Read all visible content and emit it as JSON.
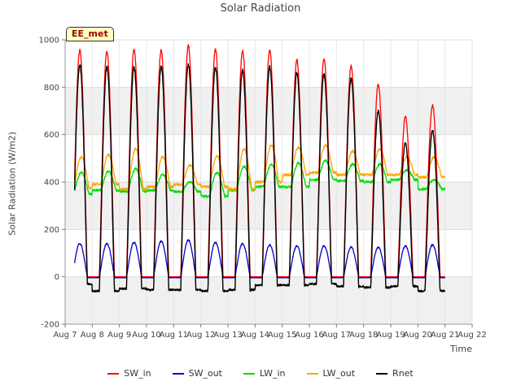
{
  "chart_data": {
    "type": "line",
    "title": "Solar Radiation",
    "ylabel": "Solar Radiation (W/m2)",
    "xlabel": "Time",
    "site_label": "EE_met",
    "ylim": [
      -200,
      1000
    ],
    "xlim": [
      "Aug 7",
      "Aug 22"
    ],
    "yticks": [
      -200,
      0,
      200,
      400,
      600,
      800,
      1000
    ],
    "xtick_labels": [
      "Aug 7",
      "Aug 8",
      "Aug 9",
      "Aug 10",
      "Aug 11",
      "Aug 12",
      "Aug 13",
      "Aug 14",
      "Aug 15",
      "Aug 16",
      "Aug 17",
      "Aug 18",
      "Aug 19",
      "Aug 20",
      "Aug 21",
      "Aug 22"
    ],
    "grid": true,
    "legend_position": "bottom",
    "days": [
      "Aug 7",
      "Aug 8",
      "Aug 9",
      "Aug 10",
      "Aug 11",
      "Aug 12",
      "Aug 13",
      "Aug 14",
      "Aug 15",
      "Aug 16",
      "Aug 17",
      "Aug 18",
      "Aug 19",
      "Aug 20"
    ],
    "series": [
      {
        "name": "SW_in",
        "color": "#ff0000",
        "daily_peak": [
          955,
          950,
          960,
          955,
          975,
          960,
          955,
          955,
          915,
          920,
          890,
          810,
          675,
          725
        ]
      },
      {
        "name": "SW_out",
        "color": "#0000cc",
        "daily_peak": [
          140,
          140,
          145,
          150,
          155,
          145,
          140,
          135,
          130,
          130,
          125,
          125,
          130,
          135
        ]
      },
      {
        "name": "LW_in",
        "color": "#00dd00",
        "daily_peak": [
          440,
          445,
          455,
          430,
          400,
          440,
          465,
          475,
          480,
          490,
          475,
          475,
          450,
          410
        ],
        "daily_min": [
          350,
          365,
          360,
          365,
          360,
          340,
          365,
          380,
          380,
          410,
          405,
          400,
          410,
          370
        ]
      },
      {
        "name": "LW_out",
        "color": "#ffa500",
        "daily_peak": [
          505,
          515,
          540,
          505,
          470,
          510,
          540,
          555,
          545,
          555,
          530,
          540,
          505,
          505
        ],
        "daily_min": [
          375,
          390,
          370,
          380,
          390,
          380,
          370,
          400,
          430,
          440,
          430,
          430,
          430,
          420
        ]
      },
      {
        "name": "Rnet",
        "color": "#000000",
        "daily_peak": [
          895,
          885,
          885,
          885,
          895,
          885,
          870,
          885,
          860,
          855,
          835,
          700,
          565,
          620
        ],
        "daily_min": [
          -30,
          -60,
          -50,
          -55,
          -55,
          -60,
          -55,
          -35,
          -35,
          -30,
          -40,
          -45,
          -40,
          -60
        ]
      }
    ]
  }
}
